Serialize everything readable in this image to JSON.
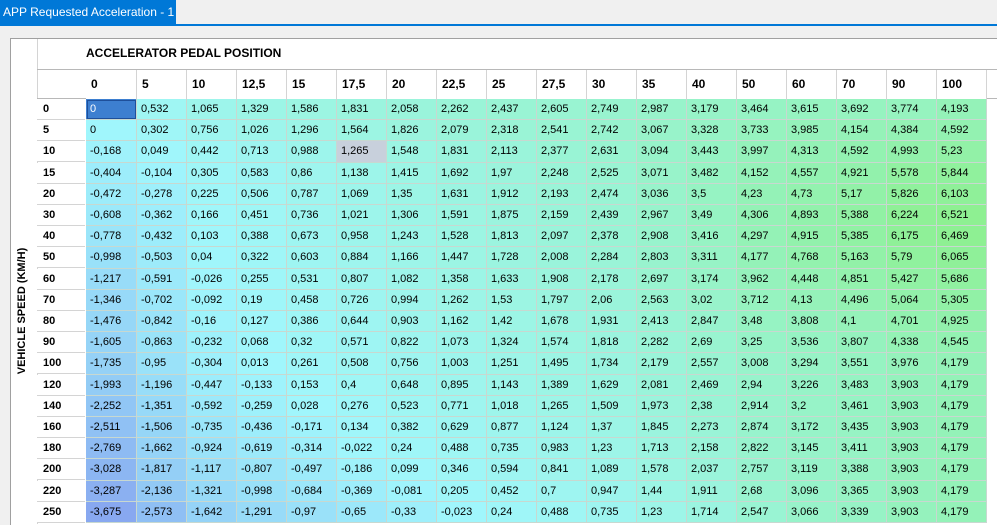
{
  "tab": {
    "title": "APP Requested Acceleration - 1"
  },
  "x_axis_title": "ACCELERATOR PEDAL POSITION",
  "y_axis_title": "VEHICLE SPEED (KM/H)",
  "columns": [
    "0",
    "5",
    "10",
    "12,5",
    "15",
    "17,5",
    "20",
    "22,5",
    "25",
    "27,5",
    "30",
    "35",
    "40",
    "50",
    "60",
    "70",
    "90",
    "100"
  ],
  "rows": [
    {
      "label": "0",
      "values": [
        "0",
        "0,532",
        "1,065",
        "1,329",
        "1,586",
        "1,831",
        "2,058",
        "2,262",
        "2,437",
        "2,605",
        "2,749",
        "2,987",
        "3,179",
        "3,464",
        "3,615",
        "3,692",
        "3,774",
        "4,193"
      ]
    },
    {
      "label": "5",
      "values": [
        "0",
        "0,302",
        "0,756",
        "1,026",
        "1,296",
        "1,564",
        "1,826",
        "2,079",
        "2,318",
        "2,541",
        "2,742",
        "3,067",
        "3,328",
        "3,733",
        "3,985",
        "4,154",
        "4,384",
        "4,592"
      ]
    },
    {
      "label": "10",
      "values": [
        "-0,168",
        "0,049",
        "0,442",
        "0,713",
        "0,988",
        "1,265",
        "1,548",
        "1,831",
        "2,113",
        "2,377",
        "2,631",
        "3,094",
        "3,443",
        "3,997",
        "4,313",
        "4,592",
        "4,993",
        "5,23"
      ]
    },
    {
      "label": "15",
      "values": [
        "-0,404",
        "-0,104",
        "0,305",
        "0,583",
        "0,86",
        "1,138",
        "1,415",
        "1,692",
        "1,97",
        "2,248",
        "2,525",
        "3,071",
        "3,482",
        "4,152",
        "4,557",
        "4,921",
        "5,578",
        "5,844"
      ]
    },
    {
      "label": "20",
      "values": [
        "-0,472",
        "-0,278",
        "0,225",
        "0,506",
        "0,787",
        "1,069",
        "1,35",
        "1,631",
        "1,912",
        "2,193",
        "2,474",
        "3,036",
        "3,5",
        "4,23",
        "4,73",
        "5,17",
        "5,826",
        "6,103"
      ]
    },
    {
      "label": "30",
      "values": [
        "-0,608",
        "-0,362",
        "0,166",
        "0,451",
        "0,736",
        "1,021",
        "1,306",
        "1,591",
        "1,875",
        "2,159",
        "2,439",
        "2,967",
        "3,49",
        "4,306",
        "4,893",
        "5,388",
        "6,224",
        "6,521"
      ]
    },
    {
      "label": "40",
      "values": [
        "-0,778",
        "-0,432",
        "0,103",
        "0,388",
        "0,673",
        "0,958",
        "1,243",
        "1,528",
        "1,813",
        "2,097",
        "2,378",
        "2,908",
        "3,416",
        "4,297",
        "4,915",
        "5,385",
        "6,175",
        "6,469"
      ]
    },
    {
      "label": "50",
      "values": [
        "-0,998",
        "-0,503",
        "0,04",
        "0,322",
        "0,603",
        "0,884",
        "1,166",
        "1,447",
        "1,728",
        "2,008",
        "2,284",
        "2,803",
        "3,311",
        "4,177",
        "4,768",
        "5,163",
        "5,79",
        "6,065"
      ]
    },
    {
      "label": "60",
      "values": [
        "-1,217",
        "-0,591",
        "-0,026",
        "0,255",
        "0,531",
        "0,807",
        "1,082",
        "1,358",
        "1,633",
        "1,908",
        "2,178",
        "2,697",
        "3,174",
        "3,962",
        "4,448",
        "4,851",
        "5,427",
        "5,686"
      ]
    },
    {
      "label": "70",
      "values": [
        "-1,346",
        "-0,702",
        "-0,092",
        "0,19",
        "0,458",
        "0,726",
        "0,994",
        "1,262",
        "1,53",
        "1,797",
        "2,06",
        "2,563",
        "3,02",
        "3,712",
        "4,13",
        "4,496",
        "5,064",
        "5,305"
      ]
    },
    {
      "label": "80",
      "values": [
        "-1,476",
        "-0,842",
        "-0,16",
        "0,127",
        "0,386",
        "0,644",
        "0,903",
        "1,162",
        "1,42",
        "1,678",
        "1,931",
        "2,413",
        "2,847",
        "3,48",
        "3,808",
        "4,1",
        "4,701",
        "4,925"
      ]
    },
    {
      "label": "90",
      "values": [
        "-1,605",
        "-0,863",
        "-0,232",
        "0,068",
        "0,32",
        "0,571",
        "0,822",
        "1,073",
        "1,324",
        "1,574",
        "1,818",
        "2,282",
        "2,69",
        "3,25",
        "3,536",
        "3,807",
        "4,338",
        "4,545"
      ]
    },
    {
      "label": "100",
      "values": [
        "-1,735",
        "-0,95",
        "-0,304",
        "0,013",
        "0,261",
        "0,508",
        "0,756",
        "1,003",
        "1,251",
        "1,495",
        "1,734",
        "2,179",
        "2,557",
        "3,008",
        "3,294",
        "3,551",
        "3,976",
        "4,179"
      ]
    },
    {
      "label": "120",
      "values": [
        "-1,993",
        "-1,196",
        "-0,447",
        "-0,133",
        "0,153",
        "0,4",
        "0,648",
        "0,895",
        "1,143",
        "1,389",
        "1,629",
        "2,081",
        "2,469",
        "2,94",
        "3,226",
        "3,483",
        "3,903",
        "4,179"
      ]
    },
    {
      "label": "140",
      "values": [
        "-2,252",
        "-1,351",
        "-0,592",
        "-0,259",
        "0,028",
        "0,276",
        "0,523",
        "0,771",
        "1,018",
        "1,265",
        "1,509",
        "1,973",
        "2,38",
        "2,914",
        "3,2",
        "3,461",
        "3,903",
        "4,179"
      ]
    },
    {
      "label": "160",
      "values": [
        "-2,511",
        "-1,506",
        "-0,735",
        "-0,436",
        "-0,171",
        "0,134",
        "0,382",
        "0,629",
        "0,877",
        "1,124",
        "1,37",
        "1,845",
        "2,273",
        "2,874",
        "3,172",
        "3,435",
        "3,903",
        "4,179"
      ]
    },
    {
      "label": "180",
      "values": [
        "-2,769",
        "-1,662",
        "-0,924",
        "-0,619",
        "-0,314",
        "-0,022",
        "0,24",
        "0,488",
        "0,735",
        "0,983",
        "1,23",
        "1,713",
        "2,158",
        "2,822",
        "3,145",
        "3,411",
        "3,903",
        "4,179"
      ]
    },
    {
      "label": "200",
      "values": [
        "-3,028",
        "-1,817",
        "-1,117",
        "-0,807",
        "-0,497",
        "-0,186",
        "0,099",
        "0,346",
        "0,594",
        "0,841",
        "1,089",
        "1,578",
        "2,037",
        "2,757",
        "3,119",
        "3,388",
        "3,903",
        "4,179"
      ]
    },
    {
      "label": "220",
      "values": [
        "-3,287",
        "-2,136",
        "-1,321",
        "-0,998",
        "-0,684",
        "-0,369",
        "-0,081",
        "0,205",
        "0,452",
        "0,7",
        "0,947",
        "1,44",
        "1,911",
        "2,68",
        "3,096",
        "3,365",
        "3,903",
        "4,179"
      ]
    },
    {
      "label": "250",
      "values": [
        "-3,675",
        "-2,573",
        "-1,642",
        "-1,291",
        "-0,97",
        "-0,65",
        "-0,33",
        "-0,023",
        "0,24",
        "0,488",
        "0,735",
        "1,23",
        "1,714",
        "2,547",
        "3,066",
        "3,339",
        "3,903",
        "4,179"
      ]
    }
  ],
  "selected_cell": {
    "row": 0,
    "col": 0
  },
  "highlighted_cell": {
    "row": 2,
    "col": 5
  },
  "colors": {
    "tab_active": "#0078d7",
    "map_low": "#88a8f0",
    "map_mid": "#a0f6fc",
    "map_high": "#8ef092",
    "selection": "#3d7fd0"
  }
}
